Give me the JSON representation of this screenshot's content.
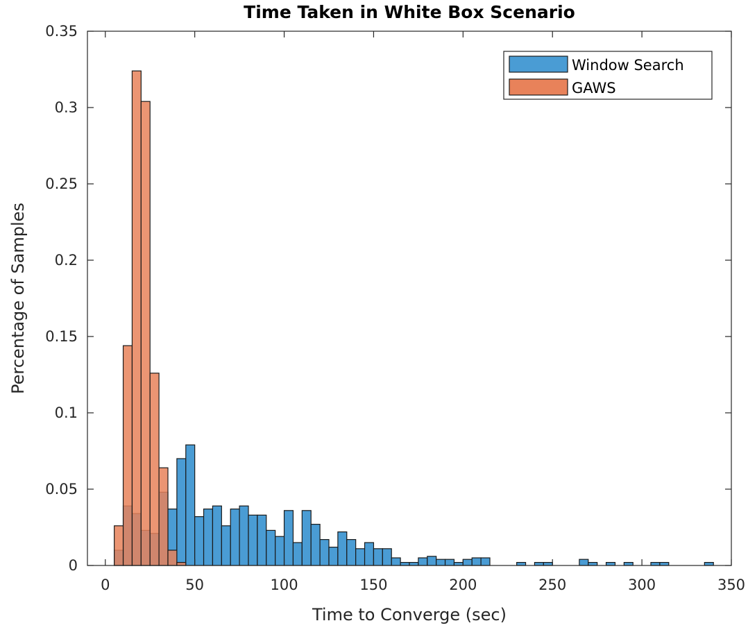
{
  "chart_data": {
    "type": "bar",
    "title": "Time Taken in White Box Scenario",
    "xlabel": "Time to Converge (sec)",
    "ylabel": "Percentage of Samples",
    "xlim": [
      -10,
      350
    ],
    "ylim": [
      0,
      0.35
    ],
    "xticks": [
      "0",
      "50",
      "100",
      "150",
      "200",
      "250",
      "300",
      "350"
    ],
    "yticks": [
      "0",
      "0.05",
      "0.1",
      "0.15",
      "0.2",
      "0.25",
      "0.3",
      "0.35"
    ],
    "bin_width": 5,
    "legend_position": "top-right",
    "grid": false,
    "series": [
      {
        "name": "Window Search",
        "color": "#4a9cd4",
        "bins": [
          [
            5,
            0.01
          ],
          [
            10,
            0.039
          ],
          [
            15,
            0.034
          ],
          [
            20,
            0.023
          ],
          [
            25,
            0.021
          ],
          [
            30,
            0.048
          ],
          [
            35,
            0.037
          ],
          [
            40,
            0.07
          ],
          [
            45,
            0.079
          ],
          [
            50,
            0.032
          ],
          [
            55,
            0.037
          ],
          [
            60,
            0.039
          ],
          [
            65,
            0.026
          ],
          [
            70,
            0.037
          ],
          [
            75,
            0.039
          ],
          [
            80,
            0.033
          ],
          [
            85,
            0.033
          ],
          [
            90,
            0.023
          ],
          [
            95,
            0.019
          ],
          [
            100,
            0.036
          ],
          [
            105,
            0.015
          ],
          [
            110,
            0.036
          ],
          [
            115,
            0.027
          ],
          [
            120,
            0.017
          ],
          [
            125,
            0.012
          ],
          [
            130,
            0.022
          ],
          [
            135,
            0.017
          ],
          [
            140,
            0.011
          ],
          [
            145,
            0.015
          ],
          [
            150,
            0.011
          ],
          [
            155,
            0.011
          ],
          [
            160,
            0.005
          ],
          [
            165,
            0.002
          ],
          [
            170,
            0.002
          ],
          [
            175,
            0.005
          ],
          [
            180,
            0.006
          ],
          [
            185,
            0.004
          ],
          [
            190,
            0.004
          ],
          [
            195,
            0.002
          ],
          [
            200,
            0.004
          ],
          [
            205,
            0.005
          ],
          [
            210,
            0.005
          ],
          [
            230,
            0.002
          ],
          [
            240,
            0.002
          ],
          [
            245,
            0.002
          ],
          [
            265,
            0.004
          ],
          [
            270,
            0.002
          ],
          [
            280,
            0.002
          ],
          [
            290,
            0.002
          ],
          [
            305,
            0.002
          ],
          [
            310,
            0.002
          ],
          [
            335,
            0.002
          ]
        ]
      },
      {
        "name": "GAWS",
        "color": "#e8825a",
        "bins": [
          [
            5,
            0.026
          ],
          [
            10,
            0.144
          ],
          [
            15,
            0.324
          ],
          [
            20,
            0.304
          ],
          [
            25,
            0.126
          ],
          [
            30,
            0.064
          ],
          [
            35,
            0.01
          ],
          [
            40,
            0.002
          ]
        ]
      }
    ]
  }
}
